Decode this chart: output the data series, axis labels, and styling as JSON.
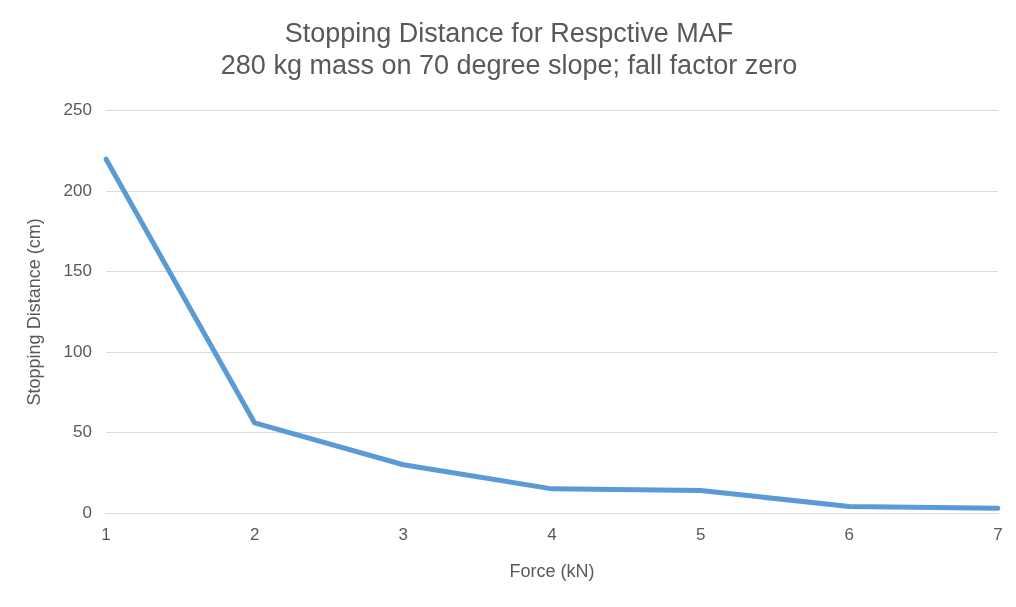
{
  "chart_data": {
    "type": "line",
    "title": "Stopping Distance for Respctive MAF",
    "subtitle": "280 kg mass on 70 degree slope; fall factor zero",
    "xlabel": "Force (kN)",
    "ylabel": "Stopping Distance (cm)",
    "categories": [
      "1",
      "2",
      "3",
      "4",
      "5",
      "6",
      "7"
    ],
    "series": [
      {
        "color": "#5b9bd5",
        "values": [
          220,
          56,
          30,
          15,
          14,
          4,
          3
        ]
      }
    ],
    "ylim": [
      0,
      250
    ],
    "yticks": [
      0,
      50,
      100,
      150,
      200,
      250
    ],
    "grid": "y",
    "marker": "none",
    "line_style": "solid"
  }
}
